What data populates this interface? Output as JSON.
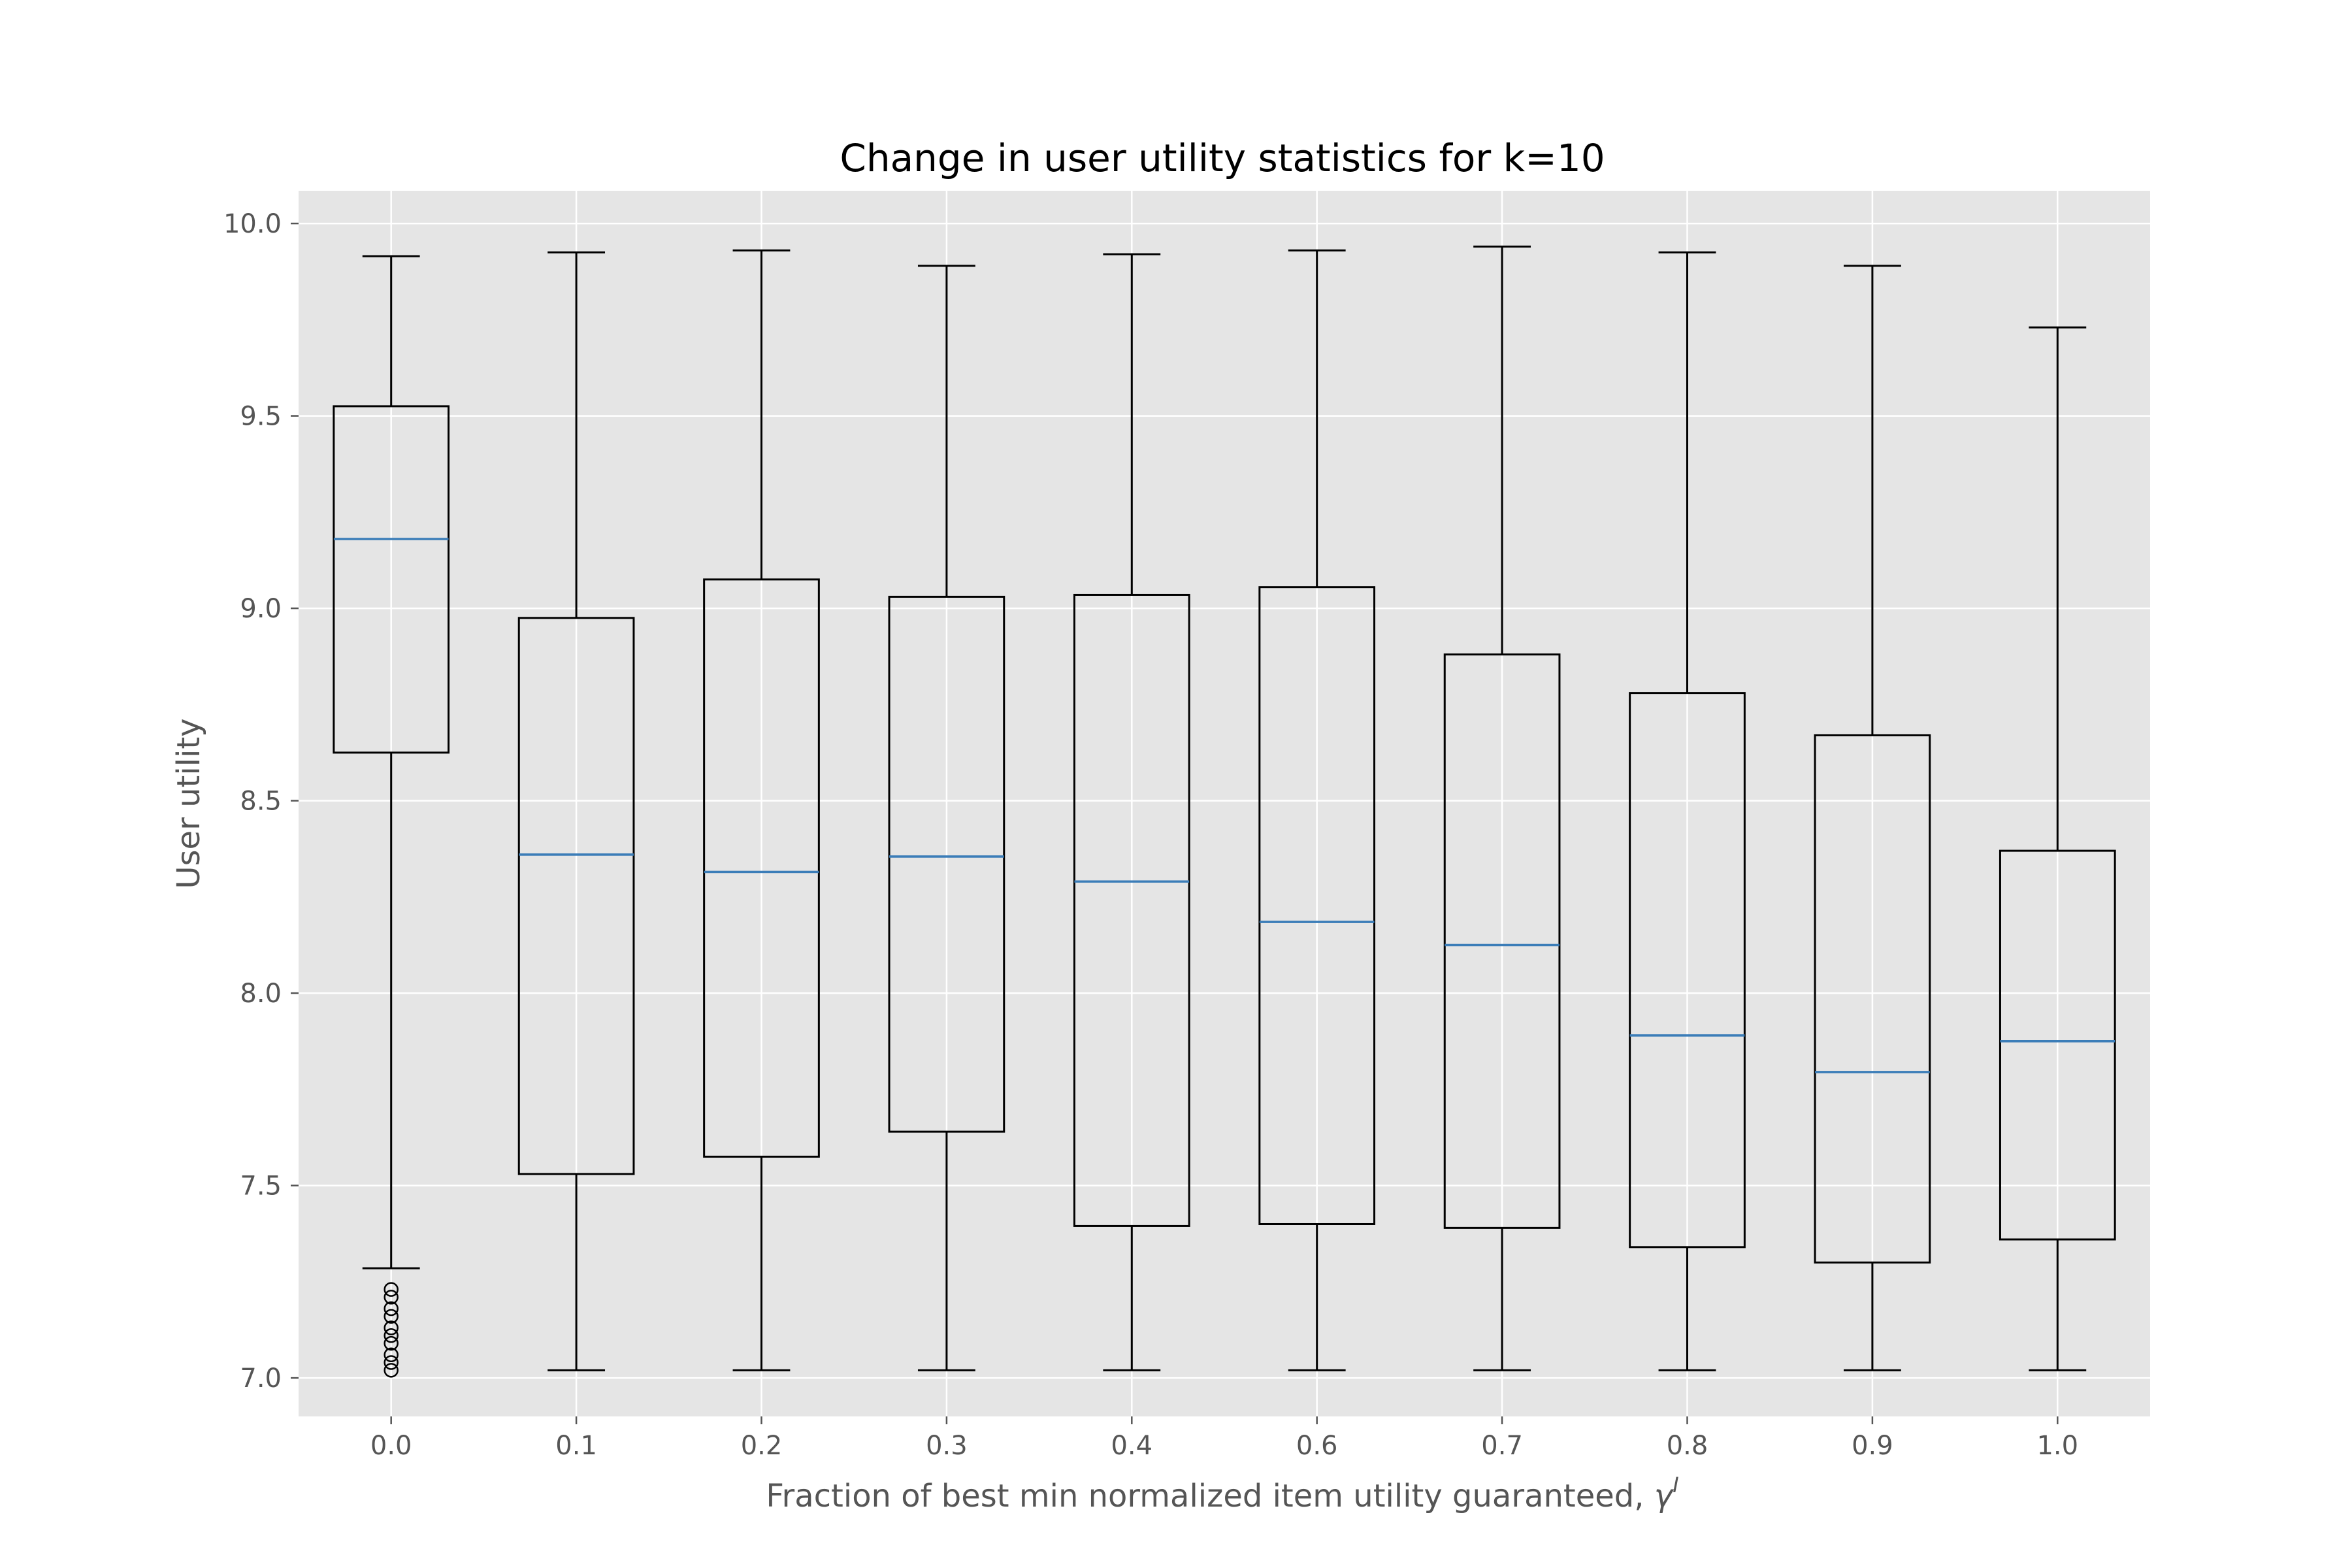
{
  "chart_data": {
    "type": "box",
    "title": "Change in user utility statistics for k=10",
    "xlabel": "Fraction of best min normalized item utility guaranteed, ",
    "xlabel_symbol": "γ",
    "xlabel_superscript": "I",
    "ylabel": "User utility",
    "ylim": [
      6.9,
      10.085
    ],
    "yticks": [
      "7.0",
      "7.5",
      "8.0",
      "8.5",
      "9.0",
      "9.5",
      "10.0"
    ],
    "grid": true,
    "colors": {
      "plot_background": "#E5E5E5",
      "grid": "#FFFFFF",
      "box": "#000000",
      "median": "#3B7DB8"
    },
    "categories": [
      "0.0",
      "0.1",
      "0.2",
      "0.3",
      "0.4",
      "0.6",
      "0.7",
      "0.8",
      "0.9",
      "1.0"
    ],
    "boxes": [
      {
        "whislo": 7.285,
        "q1": 8.625,
        "med": 9.18,
        "q3": 9.525,
        "whishi": 9.915,
        "fliers": [
          7.23,
          7.21,
          7.18,
          7.16,
          7.13,
          7.11,
          7.09,
          7.06,
          7.04,
          7.02
        ]
      },
      {
        "whislo": 7.02,
        "q1": 7.53,
        "med": 8.36,
        "q3": 8.975,
        "whishi": 9.925,
        "fliers": []
      },
      {
        "whislo": 7.02,
        "q1": 7.575,
        "med": 8.315,
        "q3": 9.075,
        "whishi": 9.93,
        "fliers": []
      },
      {
        "whislo": 7.02,
        "q1": 7.64,
        "med": 8.355,
        "q3": 9.03,
        "whishi": 9.89,
        "fliers": []
      },
      {
        "whislo": 7.02,
        "q1": 7.395,
        "med": 8.29,
        "q3": 9.035,
        "whishi": 9.92,
        "fliers": []
      },
      {
        "whislo": 7.02,
        "q1": 7.4,
        "med": 8.185,
        "q3": 9.055,
        "whishi": 9.93,
        "fliers": []
      },
      {
        "whislo": 7.02,
        "q1": 7.39,
        "med": 8.125,
        "q3": 8.88,
        "whishi": 9.94,
        "fliers": []
      },
      {
        "whislo": 7.02,
        "q1": 7.34,
        "med": 7.89,
        "q3": 8.78,
        "whishi": 9.925,
        "fliers": []
      },
      {
        "whislo": 7.02,
        "q1": 7.3,
        "med": 7.795,
        "q3": 8.67,
        "whishi": 9.89,
        "fliers": []
      },
      {
        "whislo": 7.02,
        "q1": 7.36,
        "med": 7.875,
        "q3": 8.37,
        "whishi": 9.73,
        "fliers": []
      }
    ]
  }
}
